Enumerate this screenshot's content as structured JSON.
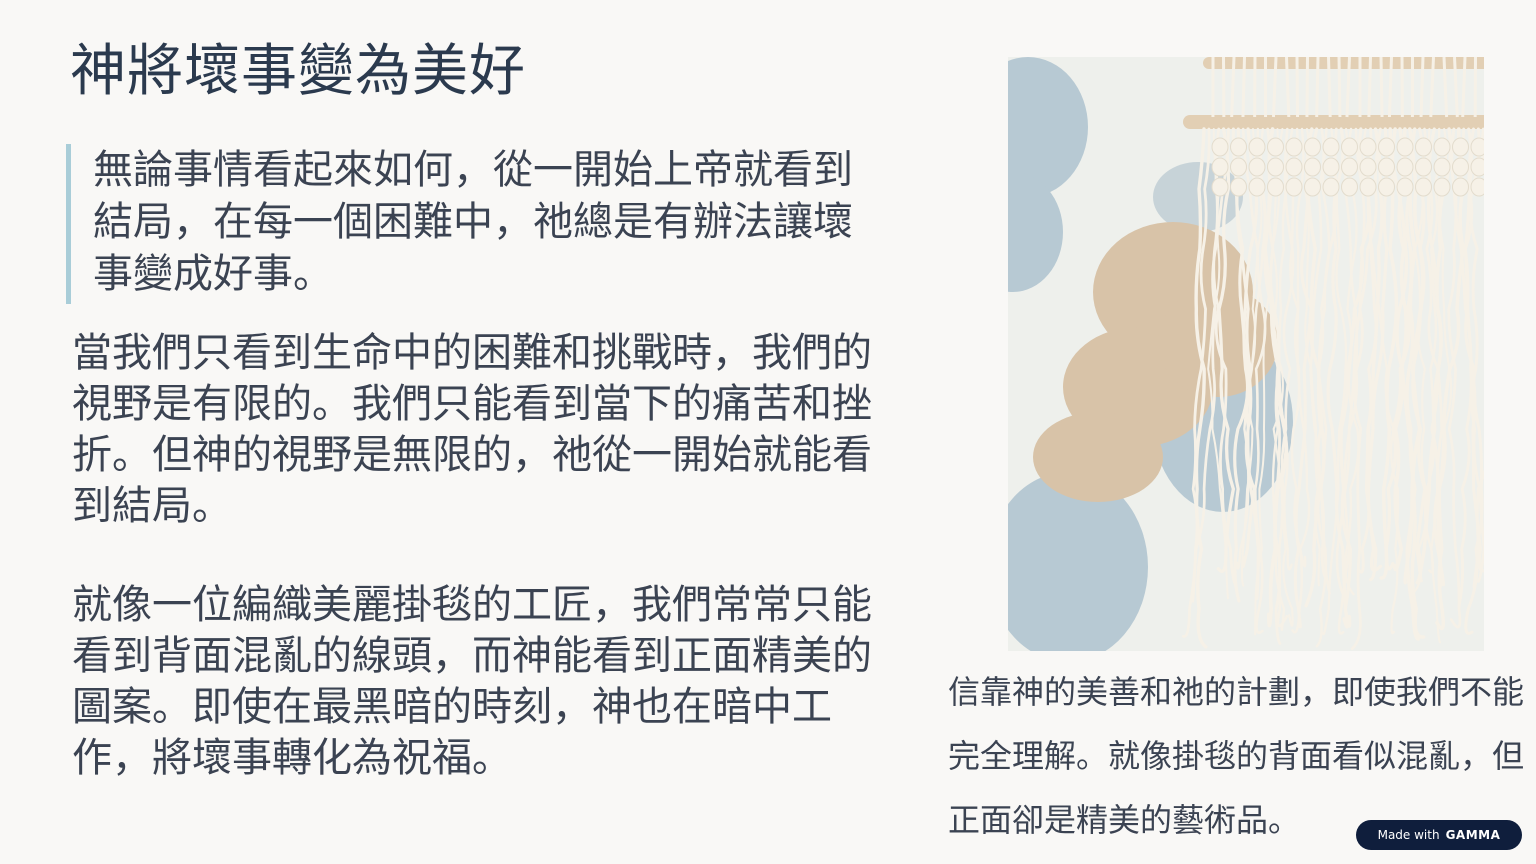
{
  "slide": {
    "title": "神將壞事變為美好",
    "quote": "無論事情看起來如何，從一開始上帝就看到結局，在每一個困難中，祂總是有辦法讓壞事變成好事。",
    "paragraphs": [
      "當我們只看到生命中的困難和挑戰時，我們的視野是有限的。我們只能看到當下的痛苦和挫折。但神的視野是無限的，祂從一開始就能看到結局。",
      "就像一位編織美麗掛毯的工匠，我們常常只能看到背面混亂的線頭，而神能看到正面精美的圖案。即使在最黑暗的時刻，神也在暗中工作，將壞事轉化為祝福。"
    ],
    "caption": "信靠神的美善和祂的計劃，即使我們不能完全理解。就像掛毯的背面看似混亂，但正面卻是精美的藝術品。"
  },
  "image": {
    "subject": "macrame-wall-hanging",
    "colors": {
      "background": "#eef0ec",
      "blue_blob": "#b7c9d3",
      "beige_blob": "#d8c3a8",
      "rope": "#f6f1e7",
      "dowel": "#e2cfb4"
    }
  },
  "badge": {
    "prefix": "Made with",
    "brand": "GAMMA"
  },
  "colors": {
    "accent_bar": "#a9cdd8",
    "title": "#2b3a4e",
    "text": "#3b4352",
    "badge_bg": "#0f1e3c"
  }
}
